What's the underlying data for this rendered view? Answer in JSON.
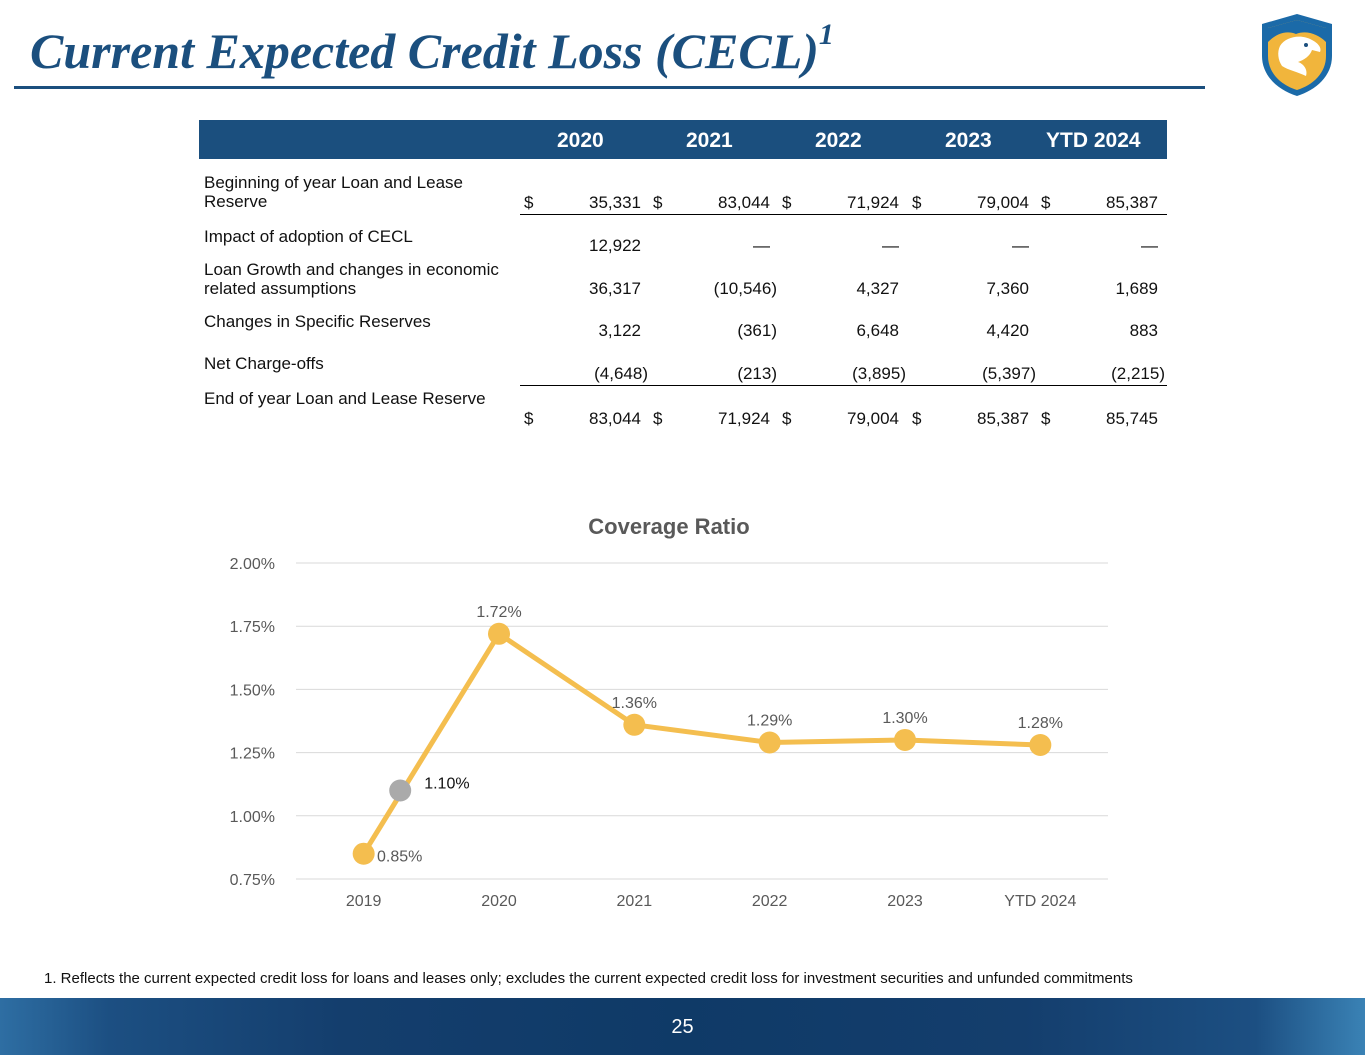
{
  "slide": {
    "title": "Current Expected Credit Loss (CECL)",
    "title_superscript": "1",
    "footnote": "1. Reflects the current expected credit loss for loans and leases only; excludes the current expected credit loss for investment securities and unfunded commitments",
    "page_number": "25"
  },
  "table": {
    "headers": [
      "2020",
      "2021",
      "2022",
      "2023",
      "YTD 2024"
    ],
    "rows": [
      {
        "label": "Beginning of year Loan and Lease Reserve",
        "dollar": "$",
        "values": [
          "35,331",
          "83,044",
          "71,924",
          "79,004",
          "85,387"
        ]
      },
      {
        "label": "Impact of adoption of CECL",
        "dollar": "",
        "values": [
          "12,922",
          "—",
          "—",
          "—",
          "—"
        ]
      },
      {
        "label": "Loan Growth and changes in economic related assumptions",
        "dollar": "",
        "values": [
          "36,317",
          "(10,546)",
          "4,327",
          "7,360",
          "1,689"
        ]
      },
      {
        "label": "Changes in Specific Reserves",
        "dollar": "",
        "values": [
          "3,122",
          "(361)",
          "6,648",
          "4,420",
          "883"
        ]
      },
      {
        "label": "Net Charge-offs",
        "dollar": "",
        "values": [
          "(4,648)",
          "(213)",
          "(3,895)",
          "(5,397)",
          "(2,215)"
        ]
      },
      {
        "label": "End of year Loan and Lease Reserve",
        "dollar": "$",
        "values": [
          "83,044",
          "71,924",
          "79,004",
          "85,387",
          "85,745"
        ]
      }
    ]
  },
  "chart_data": {
    "type": "line",
    "title": "Coverage Ratio",
    "categories": [
      "2019",
      "2020",
      "2021",
      "2022",
      "2023",
      "YTD 2024"
    ],
    "series": [
      {
        "values": [
          0.85,
          1.72,
          1.36,
          1.29,
          1.3,
          1.28
        ],
        "labels": [
          "0.85%",
          "1.72%",
          "1.36%",
          "1.29%",
          "1.30%",
          "1.28%"
        ],
        "color": "#f4be4f"
      }
    ],
    "extra_point": {
      "x_between": [
        "2019",
        "2020"
      ],
      "value": 1.1,
      "label": "1.10%",
      "color": "#aaaaaa"
    },
    "yticks": [
      "0.75%",
      "1.00%",
      "1.25%",
      "1.50%",
      "1.75%",
      "2.00%"
    ],
    "ylim": [
      0.75,
      2.0
    ],
    "grid": true
  }
}
